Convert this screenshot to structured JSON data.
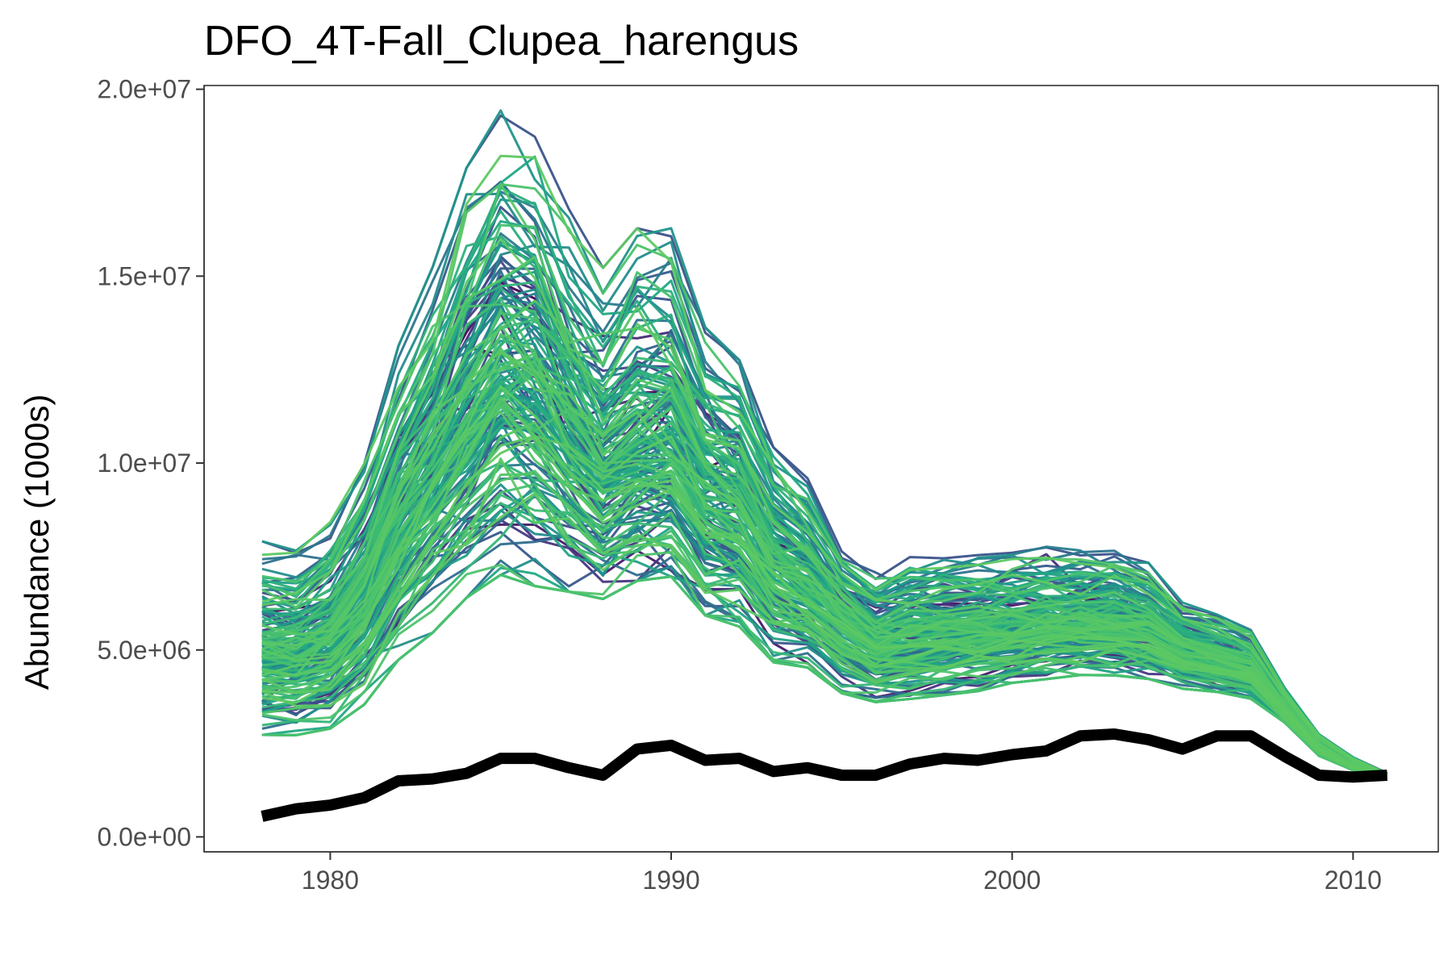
{
  "chart_data": {
    "type": "line",
    "title": "DFO_4T-Fall_Clupea_harengus",
    "xlabel": "",
    "ylabel": "Abundance (1000s)",
    "xlim": [
      1976.3,
      2012.5
    ],
    "ylim": [
      -400000,
      20100000
    ],
    "x_ticks": [
      1980,
      1990,
      2000,
      2010
    ],
    "x_tick_labels": [
      "1980",
      "1990",
      "2000",
      "2010"
    ],
    "y_ticks": [
      0,
      5000000,
      10000000,
      15000000,
      20000000
    ],
    "y_tick_labels": [
      "0.0e+00",
      "5.0e+06",
      "1.0e+07",
      "1.5e+07",
      "2.0e+07"
    ],
    "grid": false,
    "legend": "none",
    "x": [
      1978,
      1979,
      1980,
      1981,
      1982,
      1983,
      1984,
      1985,
      1986,
      1987,
      1988,
      1989,
      1990,
      1991,
      1992,
      1993,
      1994,
      1995,
      1996,
      1997,
      1998,
      1999,
      2000,
      2001,
      2002,
      2003,
      2004,
      2005,
      2006,
      2007,
      2008,
      2009,
      2010,
      2011
    ],
    "observed": {
      "color": "#000000",
      "values": [
        550000,
        750000,
        850000,
        1050000,
        1500000,
        1550000,
        1700000,
        2100000,
        2100000,
        1850000,
        1650000,
        2350000,
        2450000,
        2050000,
        2100000,
        1750000,
        1850000,
        1650000,
        1650000,
        1950000,
        2100000,
        2050000,
        2200000,
        2300000,
        2700000,
        2750000,
        2600000,
        2350000,
        2700000,
        2700000,
        2150000,
        1650000,
        1600000,
        1650000
      ]
    },
    "ensemble": {
      "count": 160,
      "colormap": "viridis",
      "color_range": [
        "#440154",
        "#5ec962"
      ],
      "central": [
        4800000,
        4850000,
        5200000,
        6300000,
        8300000,
        9600000,
        11000000,
        12300000,
        12000000,
        10700000,
        9700000,
        10300000,
        10300000,
        8800000,
        8500000,
        7200000,
        6600000,
        5800000,
        5100000,
        5300000,
        5400000,
        5450000,
        5500000,
        5600000,
        5650000,
        5700000,
        5550000,
        5000000,
        4800000,
        4500000,
        3400000,
        2400000,
        1900000,
        1650000
      ],
      "lower": [
        3000000,
        3000000,
        3200000,
        3900000,
        5200000,
        6000000,
        7000000,
        7700000,
        7400000,
        7100000,
        6800000,
        7300000,
        7400000,
        6300000,
        6000000,
        5000000,
        4800000,
        4100000,
        3800000,
        3900000,
        4000000,
        4100000,
        4300000,
        4400000,
        4500000,
        4500000,
        4400000,
        4100000,
        4000000,
        3800000,
        3100000,
        2200000,
        1800000,
        1600000
      ],
      "upper": [
        7500000,
        7300000,
        8000000,
        9500000,
        12500000,
        14500000,
        17000000,
        18500000,
        18000000,
        16000000,
        14500000,
        15500000,
        15500000,
        13000000,
        12200000,
        10000000,
        9200000,
        7500000,
        6900000,
        7200000,
        7300000,
        7300000,
        7400000,
        7500000,
        7400000,
        7400000,
        7100000,
        6100000,
        5800000,
        5400000,
        3900000,
        2700000,
        2100000,
        1700000
      ]
    }
  }
}
